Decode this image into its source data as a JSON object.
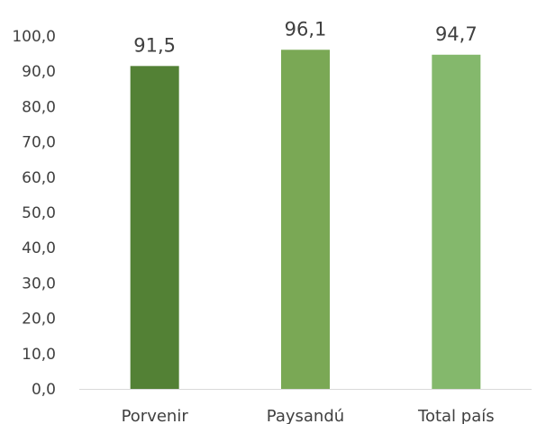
{
  "chart_data": {
    "type": "bar",
    "categories": [
      "Porvenir",
      "Paysandú",
      "Total país"
    ],
    "values": [
      91.5,
      96.1,
      94.7
    ],
    "data_labels": [
      "91,5",
      "96,1",
      "94,7"
    ],
    "colors": [
      "#538135",
      "#7aa855",
      "#84b86c"
    ],
    "y_ticks": [
      "0,0",
      "10,0",
      "20,0",
      "30,0",
      "40,0",
      "50,0",
      "60,0",
      "70,0",
      "80,0",
      "90,0",
      "100,0"
    ],
    "ylim": [
      0,
      100
    ],
    "grid": false,
    "legend": "none",
    "title": "",
    "xlabel": "",
    "ylabel": ""
  }
}
